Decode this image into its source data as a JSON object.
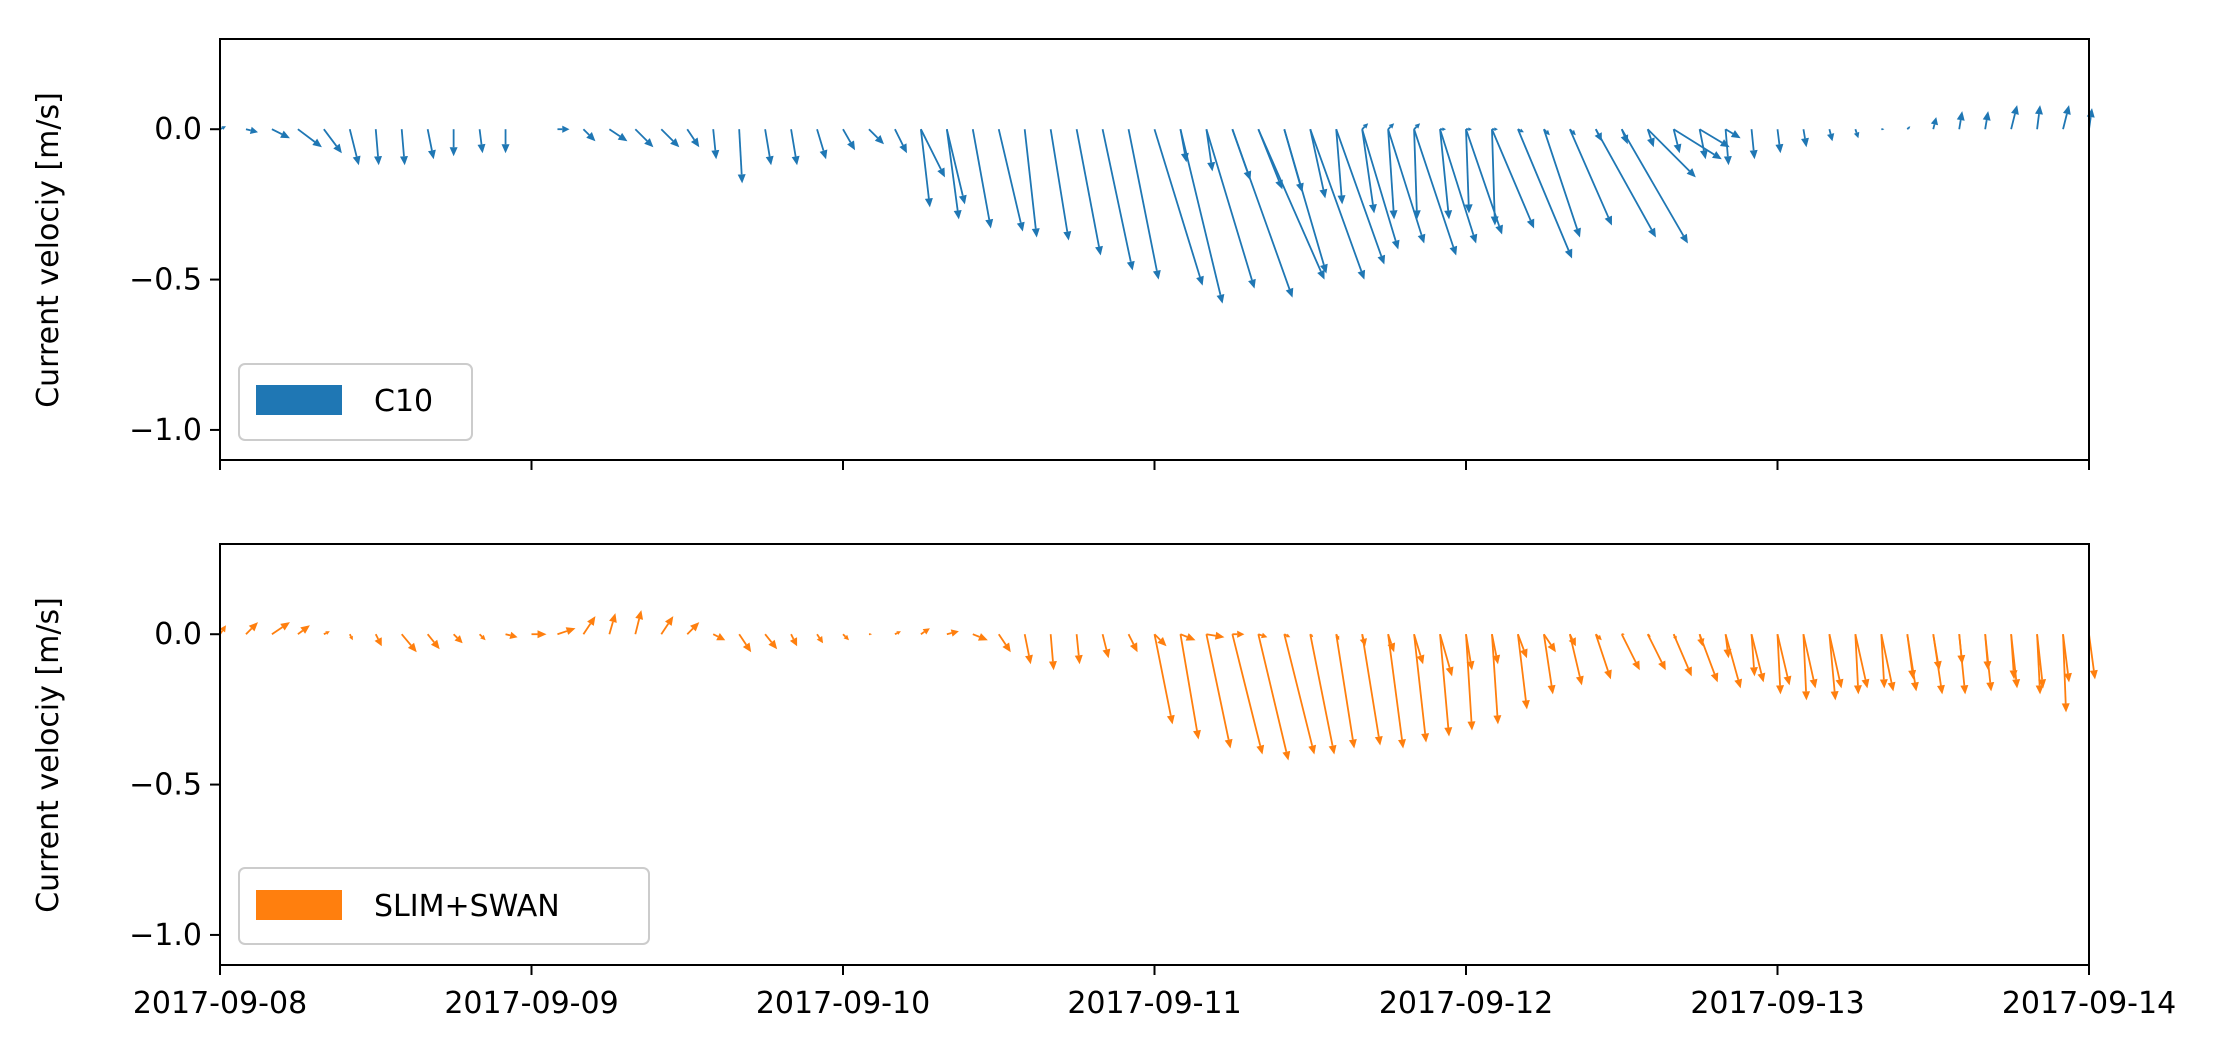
{
  "chart_data": [
    {
      "type": "quiver",
      "ylabel": "Current velociy [m/s]",
      "ylim": [
        -1.1,
        0.3
      ],
      "yticks": [
        0.0,
        -0.5,
        -1.0
      ],
      "ytick_labels": [
        "0.0",
        "−0.5",
        "−1.0"
      ],
      "xlim": [
        "2017-09-08",
        "2017-09-14"
      ],
      "xticks": [
        "2017-09-08",
        "2017-09-09",
        "2017-09-10",
        "2017-09-11",
        "2017-09-12",
        "2017-09-13",
        "2017-09-14"
      ],
      "show_xtick_labels": false,
      "grid": false,
      "legend": {
        "placement": "lower-left",
        "label": "C10"
      },
      "color": "#1f77b4",
      "time_step_hours": 2,
      "series": [
        {
          "start": "2017-09-08T00:00",
          "u": [
            0.02,
            0.04,
            0.06,
            0.08,
            0.06,
            0.03,
            0.01,
            0.01,
            0.02,
            0,
            0.01,
            0,
            0.01,
            0.04,
            0.04,
            0.06,
            0.06,
            0.06,
            0.04,
            0.01,
            0.01,
            0.02,
            0.02,
            0.03,
            0.04,
            0.05,
            0.04,
            0.08,
            0.06,
            null,
            null,
            null,
            null,
            null,
            null,
            null,
            null,
            0.02,
            0.02,
            0.06,
            0.08,
            0.06,
            0.05,
            0.02,
            0.04,
            0.02,
            0.01,
            0.03,
            0.01,
            0.01
          ],
          "v": [
            0.01,
            -0.01,
            -0.03,
            -0.06,
            -0.08,
            -0.12,
            -0.12,
            -0.12,
            -0.1,
            -0.09,
            -0.08,
            -0.08,
            null,
            0,
            -0.04,
            -0.04,
            -0.06,
            -0.06,
            -0.06,
            -0.1,
            -0.18,
            -0.12,
            -0.12,
            -0.1,
            -0.07,
            -0.05,
            -0.08,
            -0.16,
            -0.25,
            null,
            null,
            null,
            null,
            null,
            -0.15,
            null,
            -0.2,
            -0.11,
            -0.14,
            -0.17,
            -0.2,
            -0.21,
            -0.23,
            -0.25,
            -0.28,
            -0.3,
            -0.3,
            -0.3,
            -0.28,
            -0.32
          ]
        },
        {
          "start": "2017-09-10T06:00",
          "u": [
            0.03,
            0.04,
            0.06,
            0.08,
            0.04,
            0.06,
            0.08,
            0.1,
            0.1,
            0.16,
            0.14,
            0.16,
            0.2,
            0.22,
            0.14,
            0.18,
            0.16,
            0.12,
            0.12,
            0.14,
            0.12,
            0.12,
            0.14,
            0.18,
            0.12,
            0.14,
            0.2,
            0.22,
            0.16,
            0.16,
            0.1,
            0.05
          ],
          "v": [
            -0.26,
            -0.3,
            -0.33,
            -0.34,
            -0.36,
            -0.37,
            -0.42,
            -0.47,
            -0.5,
            -0.52,
            -0.58,
            -0.53,
            -0.56,
            -0.5,
            -0.48,
            -0.5,
            -0.45,
            -0.4,
            -0.38,
            -0.42,
            -0.38,
            -0.35,
            -0.33,
            -0.43,
            -0.36,
            -0.32,
            -0.36,
            -0.38,
            -0.16,
            -0.1,
            -0.06,
            -0.03
          ]
        },
        {
          "start": "2017-09-11T16:00",
          "u": [
            0.02,
            0.02,
            0.02,
            0.02,
            0.02,
            0.02,
            0.02,
            0.02,
            0.02,
            0.02,
            0.02,
            0.02,
            0.02,
            0.02,
            0.01,
            0.01,
            0.01,
            0.01,
            0.01,
            0.01,
            0.01,
            0.01,
            0.01,
            0.01,
            0.01,
            0.02,
            0.01,
            0.02,
            0.01,
            0.02,
            0.02,
            0.02,
            0.02,
            0.01,
            0.01,
            0.02,
            0.02,
            0.02,
            0.01,
            0.01,
            0.01,
            0.01,
            0.01,
            0.01,
            0.01,
            0.01,
            0.01,
            0.01,
            0.01,
            0.01,
            0.01,
            0.01,
            0.01,
            0.01,
            0.01,
            0.01,
            0.01,
            0.01,
            0.01,
            0.01,
            0.01,
            0.01,
            0.01,
            0.01,
            0.01
          ],
          "v": [
            0.02,
            0.02,
            0.02,
            0,
            0,
            0,
            -0.01,
            -0.02,
            -0.02,
            -0.04,
            -0.05,
            -0.06,
            -0.08,
            -0.1,
            -0.12,
            -0.1,
            -0.08,
            -0.06,
            -0.04,
            -0.03,
            0,
            0.01,
            0.04,
            0.06,
            0.06,
            0.08,
            0.08,
            0.08,
            0.07,
            0.06,
            0.06,
            0.05,
            0.06,
            0.07,
            0.08,
            0.06,
            0.04,
            0.02,
            0,
            -0.02,
            -0.04,
            -0.05,
            -0.06,
            -0.07,
            -0.06,
            -0.05,
            -0.04,
            -0.03,
            -0.02,
            -0.01,
            -0.01,
            -0.01,
            0,
            0,
            0,
            0,
            0,
            -0.01,
            0,
            0,
            0,
            0,
            0,
            0,
            0
          ]
        }
      ]
    },
    {
      "type": "quiver",
      "ylabel": "Current velociy [m/s]",
      "ylim": [
        -1.1,
        0.3
      ],
      "yticks": [
        0.0,
        -0.5,
        -1.0
      ],
      "ytick_labels": [
        "0.0",
        "−0.5",
        "−1.0"
      ],
      "xlim": [
        "2017-09-08",
        "2017-09-14"
      ],
      "xticks": [
        "2017-09-08",
        "2017-09-09",
        "2017-09-10",
        "2017-09-11",
        "2017-09-12",
        "2017-09-13",
        "2017-09-14"
      ],
      "xtick_labels": [
        "2017-09-08",
        "2017-09-09",
        "2017-09-10",
        "2017-09-11",
        "2017-09-12",
        "2017-09-13",
        "2017-09-14"
      ],
      "show_xtick_labels": true,
      "grid": false,
      "legend": {
        "placement": "lower-left",
        "label": "SLIM+SWAN"
      },
      "color": "#ff7f0e",
      "time_step_hours": 2,
      "series": [
        {
          "start": "2017-09-08T00:00",
          "u": [
            0.02,
            0.04,
            0.06,
            0.04,
            0.02,
            0.01,
            0.02,
            0.05,
            0.04,
            0.03,
            0.02,
            0.04,
            0.05,
            0.06,
            0.04,
            0.02,
            0.02,
            0.04,
            0.04,
            0.04,
            0.04,
            0.04,
            0.02,
            0.02,
            0.02,
            0.01,
            0.02,
            0.03,
            0.04,
            0.05,
            0.04,
            0.02,
            0.01,
            0.01,
            0.02,
            0.03,
            0.04,
            0.05,
            0.06,
            0.04,
            0.03,
            0.02,
            0.01,
            0.01,
            0.01,
            0.02,
            0.03,
            0.04,
            0.02,
            0.02,
            0.03,
            0.04,
            0.02,
            0.02,
            0.01,
            0.01,
            0.01,
            0.01,
            0.01,
            0.01,
            0.01,
            0.01,
            0.02,
            0.01,
            0.01,
            0.02,
            0.02,
            0.01,
            0.01,
            0.01,
            0.01,
            0.01
          ],
          "v": [
            0.03,
            0.04,
            0.04,
            0.03,
            0.01,
            -0.02,
            -0.04,
            -0.06,
            -0.05,
            -0.03,
            -0.02,
            -0.01,
            0,
            0.02,
            0.06,
            0.07,
            0.08,
            0.06,
            0.04,
            -0.02,
            -0.06,
            -0.05,
            -0.04,
            -0.03,
            -0.02,
            0,
            0.01,
            0.02,
            0.01,
            -0.02,
            -0.06,
            -0.1,
            -0.12,
            -0.1,
            -0.08,
            -0.06,
            -0.04,
            -0.02,
            -0.01,
            0,
            -0.01,
            -0.01,
            -0.01,
            -0.02,
            -0.04,
            -0.06,
            -0.1,
            -0.14,
            -0.12,
            -0.1,
            -0.08,
            -0.06,
            -0.04,
            -0.02,
            0,
            -0.01,
            -0.02,
            -0.04,
            -0.08,
            -0.14,
            -0.2,
            -0.22,
            -0.22,
            -0.2,
            -0.18,
            -0.15,
            -0.12,
            -0.1,
            -0.12,
            -0.15,
            -0.2,
            -0.26
          ]
        },
        {
          "start": "2017-09-11T00:00",
          "u": [
            0.06,
            0.06,
            0.08,
            0.1,
            0.1,
            0.1,
            0.08,
            0.06,
            0.06,
            0.05,
            0.04,
            0.03,
            0.02,
            0.02,
            0.03,
            0.03,
            0.04,
            0.05,
            0.06,
            0.06,
            0.06,
            0.06,
            0.05,
            0.04,
            0.04,
            0.04,
            0.04,
            0.04,
            0.04,
            0.03,
            0.03,
            0.02,
            0.02,
            0.02,
            0.02,
            0.02,
            0.02,
            0.02,
            0.03,
            0.04,
            0.04,
            0.04,
            0.04,
            0.05,
            0.05,
            0.05,
            0.04,
            0.03,
            0.02,
            0.02,
            0.02,
            0.01,
            0.01,
            0.01,
            0.01,
            0.01,
            0.02,
            0.02,
            0.01,
            0.01,
            0.01,
            0.02,
            0.01,
            0.02,
            0.02,
            0.02,
            0.03,
            0.03,
            0.03,
            0.02,
            0.02,
            0.02
          ],
          "v": [
            -0.3,
            -0.35,
            -0.38,
            -0.4,
            -0.42,
            -0.4,
            -0.4,
            -0.38,
            -0.37,
            -0.38,
            -0.36,
            -0.34,
            -0.32,
            -0.3,
            -0.25,
            -0.2,
            -0.17,
            -0.15,
            -0.12,
            -0.12,
            -0.14,
            -0.16,
            -0.18,
            -0.16,
            -0.17,
            -0.18,
            -0.18,
            -0.18,
            -0.19,
            -0.19,
            -0.2,
            -0.2,
            -0.19,
            -0.18,
            -0.18,
            -0.16,
            -0.15,
            -0.14,
            -0.12,
            -0.1,
            -0.06,
            -0.03,
            0,
            0.02,
            0.05,
            0.08,
            0.1,
            0.11,
            0.1,
            0.08,
            0.06,
            0.04,
            0.02,
            0,
            0,
            -0.01,
            -0.02,
            -0.04,
            -0.06,
            -0.08,
            -0.1,
            -0.12,
            -0.14,
            -0.12,
            -0.1,
            -0.08,
            -0.06,
            -0.04,
            -0.02,
            0,
            0.01,
            0
          ]
        }
      ]
    }
  ]
}
